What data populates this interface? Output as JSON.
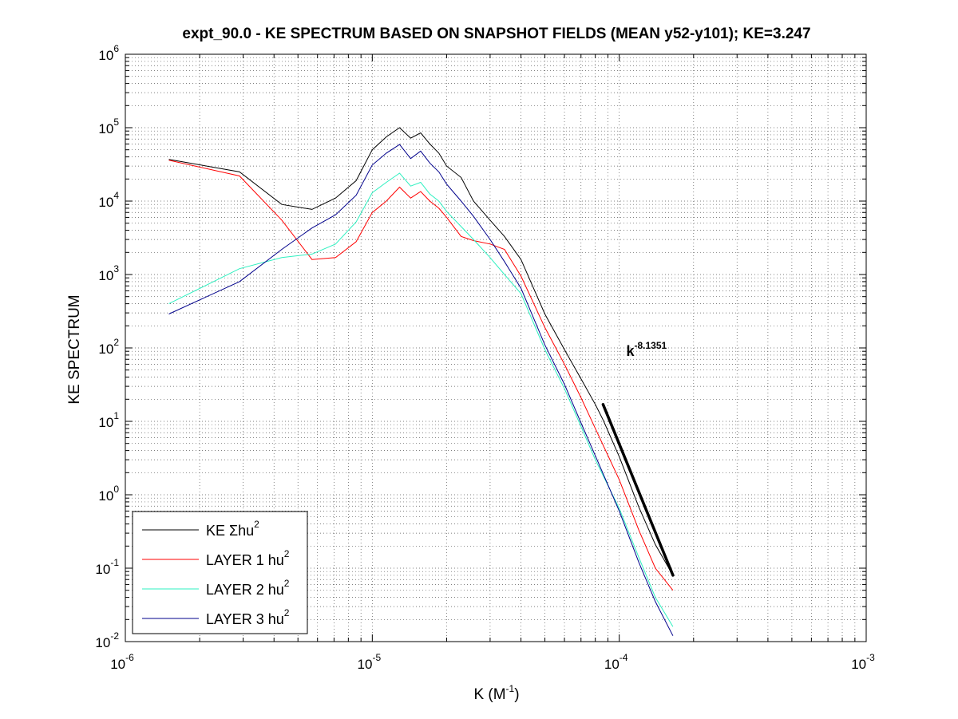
{
  "chart_data": {
    "type": "line",
    "title": "expt_90.0 - KE SPECTRUM BASED ON SNAPSHOT FIELDS (MEAN y52-y101); KE=3.247",
    "xlabel": {
      "prefix": "K  (M",
      "exp": "-1",
      "suffix": ")"
    },
    "ylabel": "KE SPECTRUM",
    "xscale": "log",
    "yscale": "log",
    "xlim": [
      1e-06,
      0.001
    ],
    "ylim": [
      0.01,
      1000000.0
    ],
    "grid": true,
    "x_ticks": [
      {
        "base": "10",
        "exp": "-6",
        "value": 1e-06
      },
      {
        "base": "10",
        "exp": "-5",
        "value": 1e-05
      },
      {
        "base": "10",
        "exp": "-4",
        "value": 0.0001
      },
      {
        "base": "10",
        "exp": "-3",
        "value": 0.001
      }
    ],
    "y_ticks": [
      {
        "base": "10",
        "exp": "-2",
        "value": 0.01
      },
      {
        "base": "10",
        "exp": "-1",
        "value": 0.1
      },
      {
        "base": "10",
        "exp": "0",
        "value": 1
      },
      {
        "base": "10",
        "exp": "1",
        "value": 10
      },
      {
        "base": "10",
        "exp": "2",
        "value": 100
      },
      {
        "base": "10",
        "exp": "3",
        "value": 1000
      },
      {
        "base": "10",
        "exp": "4",
        "value": 10000
      },
      {
        "base": "10",
        "exp": "5",
        "value": 100000
      },
      {
        "base": "10",
        "exp": "6",
        "value": 1000000
      }
    ],
    "legend_position": "bottom-left",
    "series": [
      {
        "name": "KE Σhu2",
        "legend_text": "KE Σhu",
        "legend_exp": "2",
        "color": "#000000",
        "x": [
          1.5e-06,
          2.9e-06,
          4.3e-06,
          5.7e-06,
          7.1e-06,
          8.6e-06,
          1e-05,
          1.14e-05,
          1.29e-05,
          1.43e-05,
          1.57e-05,
          1.71e-05,
          1.86e-05,
          2e-05,
          2.29e-05,
          2.57e-05,
          3e-05,
          3.43e-05,
          4e-05,
          5e-05,
          6e-05,
          7e-05,
          8e-05,
          8.6e-05,
          0.0001,
          0.00012,
          0.00014,
          0.000165
        ],
        "values": [
          37000,
          25000,
          9000,
          7700,
          11000,
          19000,
          50000,
          75000,
          100000,
          72000,
          85000,
          60000,
          45000,
          30000,
          21000,
          10000,
          5500,
          3300,
          1600,
          290,
          95,
          38,
          17,
          10.5,
          3.3,
          0.68,
          0.21,
          0.08
        ]
      },
      {
        "name": "LAYER 1 hu2",
        "legend_text": "LAYER 1 hu",
        "legend_exp": "2",
        "color": "#ff0000",
        "x": [
          1.5e-06,
          2.9e-06,
          4.3e-06,
          5.7e-06,
          7.1e-06,
          8.6e-06,
          1e-05,
          1.14e-05,
          1.29e-05,
          1.43e-05,
          1.57e-05,
          1.71e-05,
          1.86e-05,
          2e-05,
          2.29e-05,
          2.57e-05,
          3e-05,
          3.43e-05,
          4e-05,
          5e-05,
          6e-05,
          7e-05,
          8e-05,
          0.0001,
          0.00012,
          0.00014,
          0.000165
        ],
        "values": [
          36000,
          22000,
          5500,
          1600,
          1700,
          2800,
          7000,
          10000,
          15500,
          11000,
          13500,
          10000,
          8000,
          6000,
          3300,
          2900,
          2600,
          2200,
          950,
          190,
          60,
          21,
          8,
          1.6,
          0.33,
          0.1,
          0.05
        ]
      },
      {
        "name": "LAYER 2 hu2",
        "legend_text": "LAYER 2 hu",
        "legend_exp": "2",
        "color": "#2ef0c0",
        "x": [
          1.5e-06,
          2.9e-06,
          4.3e-06,
          5.7e-06,
          7.1e-06,
          8.6e-06,
          1e-05,
          1.14e-05,
          1.29e-05,
          1.43e-05,
          1.57e-05,
          1.71e-05,
          1.86e-05,
          2e-05,
          2.29e-05,
          2.57e-05,
          3e-05,
          3.43e-05,
          4e-05,
          5e-05,
          6e-05,
          7e-05,
          8e-05,
          0.0001,
          0.00012,
          0.00014,
          0.000165
        ],
        "values": [
          400,
          1200,
          1700,
          1900,
          2600,
          5200,
          13000,
          18000,
          24000,
          16000,
          18000,
          12500,
          10000,
          7200,
          4500,
          3000,
          1700,
          1000,
          550,
          95,
          28,
          8.5,
          3.0,
          0.65,
          0.14,
          0.04,
          0.016
        ]
      },
      {
        "name": "LAYER 3 hu2",
        "legend_text": "LAYER 3 hu",
        "legend_exp": "2",
        "color": "#00008b",
        "x": [
          1.5e-06,
          2.9e-06,
          4.3e-06,
          5.7e-06,
          7.1e-06,
          8.6e-06,
          1e-05,
          1.14e-05,
          1.29e-05,
          1.43e-05,
          1.57e-05,
          1.71e-05,
          1.86e-05,
          2e-05,
          2.29e-05,
          2.57e-05,
          3e-05,
          3.43e-05,
          4e-05,
          5e-05,
          6e-05,
          7e-05,
          8e-05,
          0.0001,
          0.00012,
          0.00014,
          0.000165
        ],
        "values": [
          290,
          800,
          2200,
          4300,
          6500,
          12000,
          31000,
          45000,
          59000,
          38000,
          48000,
          33000,
          25000,
          17000,
          10000,
          6200,
          3000,
          1500,
          650,
          110,
          32,
          9.5,
          3.4,
          0.6,
          0.12,
          0.035,
          0.012
        ]
      }
    ],
    "fit_line": {
      "label": "k",
      "label_exp": "-8.1351",
      "label_at": {
        "x": 0.00011,
        "y": 100
      },
      "color": "#000000",
      "x_start": 8.6e-05,
      "x_end": 0.000165,
      "y_start": 17,
      "y_end": 0.08
    }
  }
}
